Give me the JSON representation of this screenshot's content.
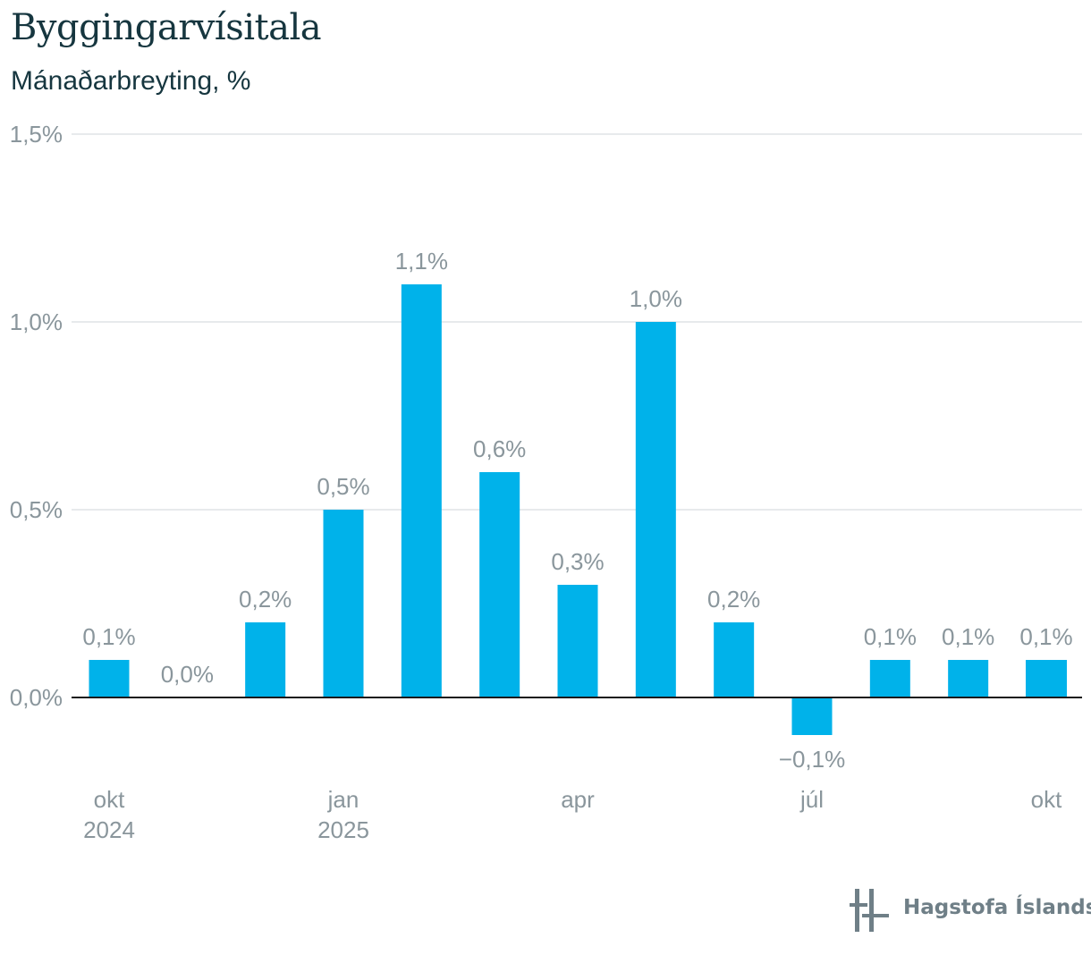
{
  "title": "Byggingarvísitala",
  "subtitle": "Mánaðarbreyting, %",
  "source": "Hagstofa Íslands",
  "colors": {
    "bar": "#00b2ea",
    "grid": "#dfe3e6",
    "axis": "#1a1a1a",
    "label": "#8a969c",
    "title": "#16363f",
    "logo": "#6f7f87"
  },
  "chart_data": {
    "type": "bar",
    "categories": [
      "2024-10",
      "2024-11",
      "2024-12",
      "2025-01",
      "2025-02",
      "2025-03",
      "2025-04",
      "2025-05",
      "2025-06",
      "2025-07",
      "2025-08",
      "2025-09",
      "2025-10"
    ],
    "values": [
      0.1,
      0.0,
      0.2,
      0.5,
      1.1,
      0.6,
      0.3,
      1.0,
      0.2,
      -0.1,
      0.1,
      0.1,
      0.1
    ],
    "data_labels": [
      "0,1%",
      "0,0%",
      "0,2%",
      "0,5%",
      "1,1%",
      "0,6%",
      "0,3%",
      "1,0%",
      "0,2%",
      "−0,1%",
      "0,1%",
      "0,1%",
      "0,1%"
    ],
    "x_tick_labels": [
      {
        "index": 0,
        "lines": [
          "okt",
          "2024"
        ]
      },
      {
        "index": 3,
        "lines": [
          "jan",
          "2025"
        ]
      },
      {
        "index": 6,
        "lines": [
          "apr"
        ]
      },
      {
        "index": 9,
        "lines": [
          "júl"
        ]
      },
      {
        "index": 12,
        "lines": [
          "okt"
        ]
      }
    ],
    "y_ticks": [
      0.0,
      0.5,
      1.0,
      1.5
    ],
    "y_tick_labels": [
      "0,0%",
      "0,5%",
      "1,0%",
      "1,5%"
    ],
    "ylim": [
      -0.2,
      1.5
    ],
    "grid": true,
    "legend": "none"
  }
}
